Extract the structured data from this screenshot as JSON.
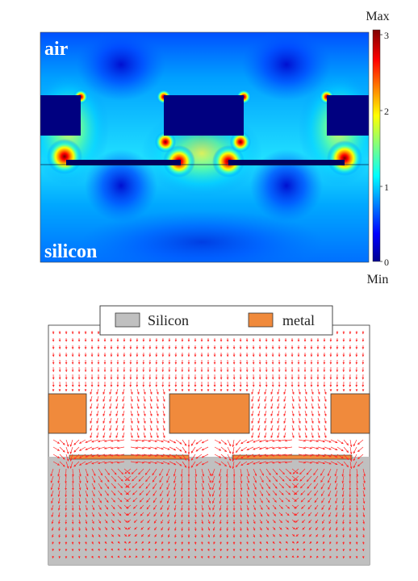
{
  "top_panel": {
    "label_air": "air",
    "label_silicon": "silicon",
    "colorbar": {
      "max_label": "Max",
      "min_label": "Min",
      "ticks": [
        "3",
        "2",
        "1",
        "0"
      ]
    }
  },
  "bottom_panel": {
    "legend": [
      {
        "label": "Silicon",
        "color": "#c0c0c0"
      },
      {
        "label": "metal",
        "color": "#f08a3c"
      }
    ],
    "arrow_color": "#ff2a2a"
  }
}
